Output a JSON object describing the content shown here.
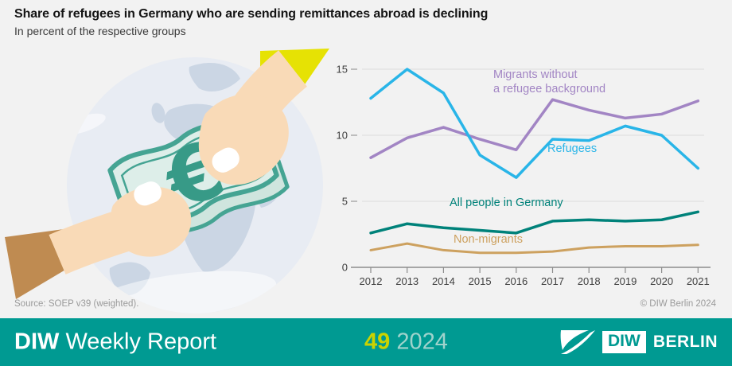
{
  "header": {
    "title": "Share of refugees in Germany who are sending remittances abroad is declining",
    "subtitle": "In percent of the respective groups"
  },
  "illustration": {
    "euro_symbol": "€"
  },
  "chart_data": {
    "type": "line",
    "categories": [
      "2012",
      "2013",
      "2014",
      "2015",
      "2016",
      "2017",
      "2018",
      "2019",
      "2020",
      "2021"
    ],
    "yticks": [
      0,
      5,
      10,
      15
    ],
    "ylim": [
      0,
      15.5
    ],
    "grid": true,
    "legend_position": "inline-annotations",
    "xlabel": "",
    "ylabel": "Percent of the respective groups",
    "series": [
      {
        "name": "Migrants without a refugee background",
        "color": "#a285c4",
        "values": [
          8.3,
          9.8,
          10.6,
          9.7,
          8.9,
          12.7,
          11.9,
          11.3,
          11.6,
          12.6
        ]
      },
      {
        "name": "Refugees",
        "color": "#29b5e8",
        "values": [
          12.8,
          15.0,
          13.2,
          8.5,
          6.8,
          9.7,
          9.6,
          10.7,
          10.0,
          7.5
        ]
      },
      {
        "name": "All people in Germany",
        "color": "#00827a",
        "values": [
          2.6,
          3.3,
          3.0,
          2.8,
          2.6,
          3.5,
          3.6,
          3.5,
          3.6,
          4.2
        ]
      },
      {
        "name": "Non-migrants",
        "color": "#cda15f",
        "values": [
          1.3,
          1.8,
          1.3,
          1.1,
          1.1,
          1.2,
          1.5,
          1.6,
          1.6,
          1.7
        ]
      }
    ],
    "labels": {
      "migrants_line1": "Migrants without",
      "migrants_line2": "a refugee background",
      "refugees": "Refugees",
      "all_people": "All people in Germany",
      "non_migrants": "Non-migrants"
    }
  },
  "footer": {
    "source": "Source: SOEP v39 (weighted).",
    "copyright": "© DIW Berlin 2024"
  },
  "bottom_bar": {
    "background_color": "#009a92",
    "brand_bold": "DIW",
    "brand_rest": "Weekly Report",
    "issue_number": "49",
    "issue_number_color": "#cbd300",
    "issue_year": "2024",
    "issue_year_color": "#9fd3cc",
    "logo": {
      "diw": "DIW",
      "berlin": "BERLIN"
    }
  }
}
